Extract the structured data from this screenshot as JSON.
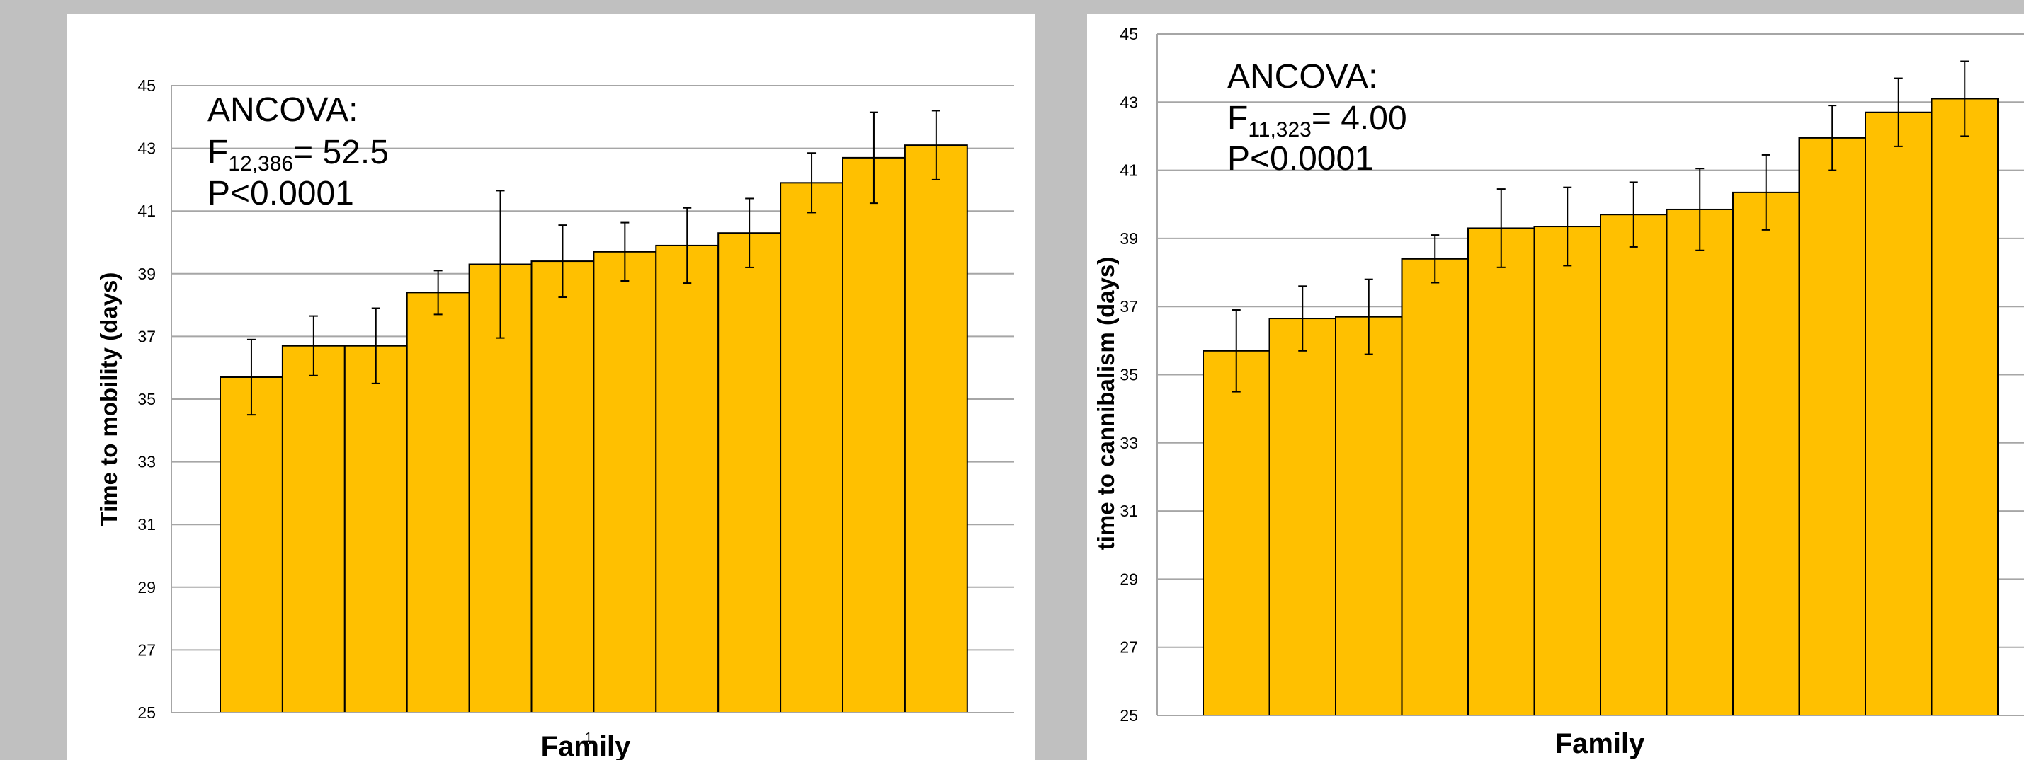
{
  "colors": {
    "background": "#c0c0c0",
    "panel": "#ffffff",
    "bar_fill": "#ffc000",
    "bar_stroke": "#000000",
    "grid": "#a6a6a6"
  },
  "chart_data": [
    {
      "type": "bar",
      "title": "",
      "xlabel": "Family",
      "ylabel": "Time to mobility (days)",
      "ylim": [
        25,
        45
      ],
      "yticks": [
        25,
        27,
        29,
        31,
        33,
        35,
        37,
        39,
        41,
        43,
        45
      ],
      "grid": true,
      "values": [
        35.7,
        36.7,
        36.7,
        38.4,
        39.3,
        39.4,
        39.7,
        39.9,
        40.3,
        41.9,
        42.7,
        43.1
      ],
      "errors": [
        1.2,
        0.95,
        1.2,
        0.7,
        2.35,
        1.15,
        0.93,
        1.2,
        1.1,
        0.95,
        1.45,
        1.1
      ],
      "annotation": {
        "line1": "ANCOVA:",
        "f_letter": "F",
        "f_subscript": "12,386",
        "f_value": "= 52.5",
        "line3": "P<0.0001"
      },
      "stray_mark": "1"
    },
    {
      "type": "bar",
      "title": "",
      "xlabel": "Family",
      "ylabel": "time to cannibalism (days)",
      "ylim": [
        25,
        45
      ],
      "yticks": [
        25,
        27,
        29,
        31,
        33,
        35,
        37,
        39,
        41,
        43,
        45
      ],
      "grid": true,
      "values": [
        35.7,
        36.65,
        36.7,
        38.4,
        39.3,
        39.35,
        39.7,
        39.85,
        40.35,
        41.95,
        42.7,
        43.1
      ],
      "errors": [
        1.2,
        0.95,
        1.1,
        0.7,
        1.15,
        1.15,
        0.95,
        1.2,
        1.1,
        0.95,
        1.0,
        1.1
      ],
      "annotation": {
        "line1": "ANCOVA:",
        "f_letter": "F",
        "f_subscript": "11,323",
        "f_value": "= 4.00",
        "line3": "P<0.0001"
      }
    }
  ]
}
